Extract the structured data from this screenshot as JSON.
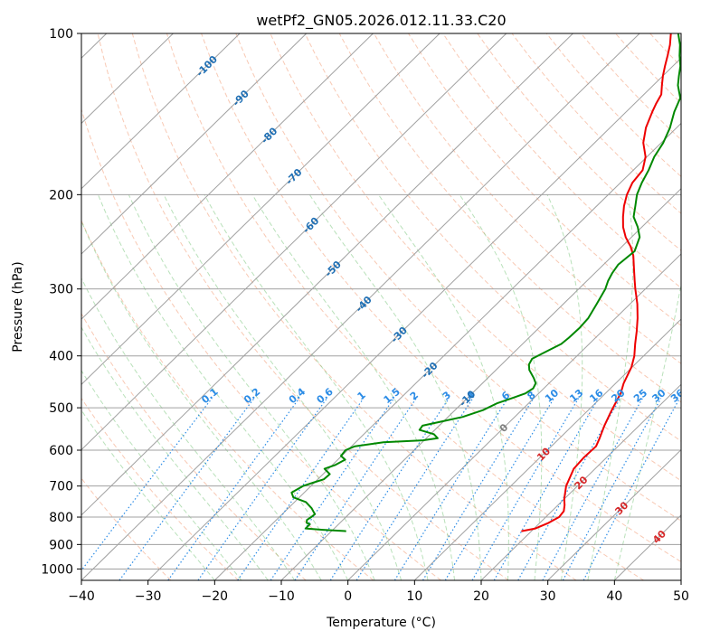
{
  "chart_data": {
    "type": "skew-t",
    "title": "wetPf2_GN05.2026.012.11.33.C20",
    "xlabel": "Temperature (°C)",
    "ylabel": "Pressure (hPa)",
    "xlim": [
      -40,
      50
    ],
    "ylim_hpa": [
      1050,
      100
    ],
    "x_ticks": [
      -40,
      -30,
      -20,
      -10,
      0,
      10,
      20,
      30,
      40,
      50
    ],
    "x_tick_labels": [
      "−40",
      "−30",
      "−20",
      "−10",
      "0",
      "10",
      "20",
      "30",
      "40",
      "50"
    ],
    "y_ticks": [
      100,
      200,
      300,
      400,
      500,
      600,
      700,
      800,
      900,
      1000
    ],
    "y_tick_labels": [
      "100",
      "200",
      "300",
      "400",
      "500",
      "600",
      "700",
      "800",
      "900",
      "1000"
    ],
    "grid": true,
    "isotherms": {
      "values": [
        -100,
        -90,
        -80,
        -70,
        -60,
        -50,
        -40,
        -30,
        -20,
        -10,
        0,
        10,
        20,
        30,
        40
      ],
      "labels": [
        "-100",
        "-90",
        "-80",
        "-70",
        "-60",
        "-50",
        "-40",
        "-30",
        "-20",
        "-10",
        "0",
        "10",
        "20",
        "30",
        "40"
      ]
    },
    "mixing_ratio": {
      "values": [
        0.1,
        0.2,
        0.4,
        0.6,
        1,
        1.5,
        2,
        3,
        4,
        6,
        8,
        10,
        13,
        16,
        20,
        25,
        30,
        36
      ],
      "labels": [
        "0.1",
        "0.2",
        "0.4",
        "0.6",
        "1",
        "1.5",
        "2",
        "3",
        "4",
        "6",
        "8",
        "10",
        "13",
        "16",
        "20",
        "25",
        "30",
        "36"
      ],
      "label_pressure_hpa": 480
    },
    "series": [
      {
        "kind": "temperature",
        "color": "#ee0000",
        "points": [
          [
            850,
            18.5
          ],
          [
            840,
            20.2
          ],
          [
            820,
            21.3
          ],
          [
            800,
            22.0
          ],
          [
            780,
            21.8
          ],
          [
            760,
            21.0
          ],
          [
            740,
            20.0
          ],
          [
            700,
            18.3
          ],
          [
            650,
            16.8
          ],
          [
            620,
            16.6
          ],
          [
            590,
            16.7
          ],
          [
            570,
            16.0
          ],
          [
            540,
            14.8
          ],
          [
            510,
            13.7
          ],
          [
            490,
            13.0
          ],
          [
            470,
            12.3
          ],
          [
            450,
            11.2
          ],
          [
            420,
            9.9
          ],
          [
            400,
            8.6
          ],
          [
            380,
            6.9
          ],
          [
            360,
            5.2
          ],
          [
            340,
            3.3
          ],
          [
            320,
            1.1
          ],
          [
            300,
            -1.5
          ],
          [
            290,
            -2.8
          ],
          [
            275,
            -4.8
          ],
          [
            260,
            -6.9
          ],
          [
            250,
            -8.7
          ],
          [
            240,
            -10.9
          ],
          [
            230,
            -12.8
          ],
          [
            220,
            -14.4
          ],
          [
            210,
            -15.9
          ],
          [
            200,
            -17.2
          ],
          [
            190,
            -18.2
          ],
          [
            180,
            -18.6
          ],
          [
            170,
            -20.2
          ],
          [
            160,
            -22.7
          ],
          [
            150,
            -24.6
          ],
          [
            140,
            -26.1
          ],
          [
            135,
            -26.8
          ],
          [
            130,
            -27.4
          ],
          [
            125,
            -28.7
          ],
          [
            120,
            -30.0
          ],
          [
            115,
            -31.2
          ],
          [
            110,
            -32.4
          ],
          [
            105,
            -33.7
          ],
          [
            100,
            -35.3
          ]
        ]
      },
      {
        "kind": "dewpoint",
        "color": "#008800",
        "points": [
          [
            850,
            -7.8
          ],
          [
            845,
            -11.5
          ],
          [
            840,
            -14.3
          ],
          [
            825,
            -14.3
          ],
          [
            820,
            -15.0
          ],
          [
            810,
            -15.4
          ],
          [
            800,
            -15.2
          ],
          [
            790,
            -15.1
          ],
          [
            770,
            -16.5
          ],
          [
            750,
            -18.3
          ],
          [
            735,
            -20.9
          ],
          [
            720,
            -21.9
          ],
          [
            700,
            -21.2
          ],
          [
            690,
            -20.2
          ],
          [
            680,
            -19.1
          ],
          [
            665,
            -19.0
          ],
          [
            650,
            -20.6
          ],
          [
            640,
            -19.6
          ],
          [
            625,
            -18.9
          ],
          [
            615,
            -20.1
          ],
          [
            600,
            -20.3
          ],
          [
            590,
            -19.5
          ],
          [
            580,
            -15.8
          ],
          [
            575,
            -10.2
          ],
          [
            570,
            -8.3
          ],
          [
            560,
            -9.5
          ],
          [
            550,
            -12.3
          ],
          [
            540,
            -12.5
          ],
          [
            530,
            -10.2
          ],
          [
            520,
            -7.8
          ],
          [
            505,
            -5.8
          ],
          [
            490,
            -4.7
          ],
          [
            480,
            -3.3
          ],
          [
            470,
            -2.0
          ],
          [
            460,
            -1.6
          ],
          [
            450,
            -2.0
          ],
          [
            440,
            -3.1
          ],
          [
            425,
            -5.0
          ],
          [
            415,
            -5.9
          ],
          [
            405,
            -6.3
          ],
          [
            395,
            -5.5
          ],
          [
            380,
            -4.2
          ],
          [
            370,
            -4.0
          ],
          [
            355,
            -3.9
          ],
          [
            340,
            -4.1
          ],
          [
            320,
            -5.0
          ],
          [
            300,
            -6.0
          ],
          [
            290,
            -6.8
          ],
          [
            280,
            -7.4
          ],
          [
            270,
            -7.8
          ],
          [
            255,
            -7.4
          ],
          [
            240,
            -8.8
          ],
          [
            230,
            -10.6
          ],
          [
            220,
            -12.8
          ],
          [
            210,
            -14.2
          ],
          [
            200,
            -15.7
          ],
          [
            190,
            -16.8
          ],
          [
            180,
            -17.7
          ],
          [
            170,
            -18.9
          ],
          [
            160,
            -19.7
          ],
          [
            150,
            -21.0
          ],
          [
            140,
            -22.8
          ],
          [
            132,
            -24.0
          ],
          [
            125,
            -26.3
          ],
          [
            120,
            -27.6
          ],
          [
            115,
            -28.9
          ],
          [
            110,
            -30.6
          ],
          [
            105,
            -32.2
          ],
          [
            100,
            -34.2
          ]
        ]
      }
    ]
  }
}
